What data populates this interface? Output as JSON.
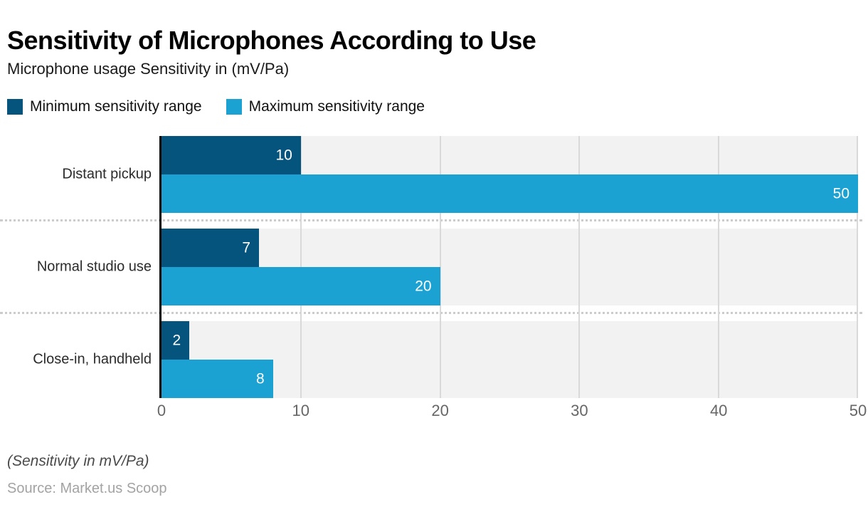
{
  "title": "Sensitivity of Microphones According to Use",
  "subtitle": "Microphone usage Sensitivity in (mV/Pa)",
  "legend": {
    "items": [
      {
        "label": "Minimum sensitivity range",
        "color": "#05547d"
      },
      {
        "label": "Maximum sensitivity range",
        "color": "#1ba2d2"
      }
    ]
  },
  "footer": {
    "axis_note": "(Sensitivity in mV/Pa)",
    "source": "Source: Market.us Scoop"
  },
  "colors": {
    "min_series": "#05547d",
    "max_series": "#1ba2d2",
    "plot_background": "#f2f2f2",
    "gridline": "#d9d9d9",
    "axis_line": "#000000",
    "tick_text": "#666666",
    "bar_value_text": "#ffffff"
  },
  "chart_data": {
    "type": "bar",
    "orientation": "horizontal",
    "title": "Sensitivity of Microphones According to Use",
    "subtitle": "Microphone usage Sensitivity in (mV/Pa)",
    "categories": [
      "Distant pickup",
      "Normal studio use",
      "Close-in, handheld"
    ],
    "series": [
      {
        "name": "Minimum sensitivity range",
        "color": "#05547d",
        "values": [
          10,
          7,
          2
        ]
      },
      {
        "name": "Maximum sensitivity range",
        "color": "#1ba2d2",
        "values": [
          50,
          20,
          8
        ]
      }
    ],
    "xlabel": "Sensitivity in mV/Pa",
    "ylabel": "",
    "xlim": [
      0,
      50
    ],
    "xticks": [
      0,
      10,
      20,
      30,
      40,
      50
    ],
    "grid": true,
    "legend_position": "top-left",
    "data_labels": true
  }
}
